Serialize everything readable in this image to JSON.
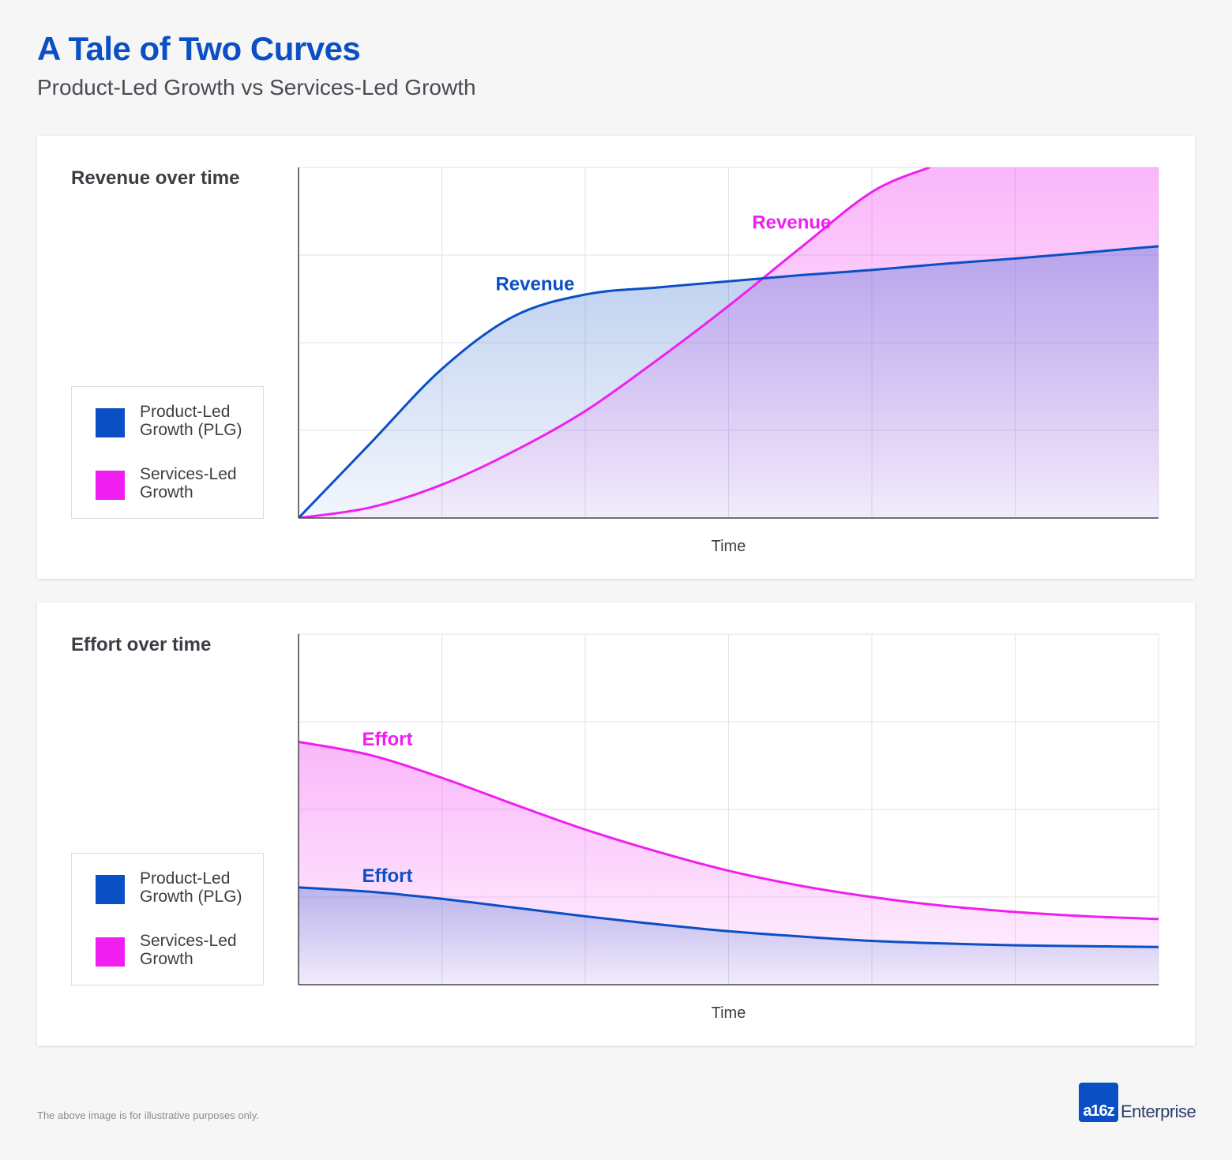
{
  "header": {
    "title": "A Tale of Two Curves",
    "subtitle": "Product-Led Growth vs Services-Led Growth"
  },
  "colors": {
    "plg": "#0b4fc4",
    "slg": "#f01ef0",
    "title": "#0b4fc4"
  },
  "legend": {
    "plg": "Product-Led Growth (PLG)",
    "slg": "Services-Led Growth"
  },
  "chart_data": [
    {
      "type": "line",
      "title": "Revenue over time",
      "xlabel": "Time",
      "ylabel": "",
      "xlim": [
        0,
        6
      ],
      "ylim": [
        0,
        4
      ],
      "grid": true,
      "legend_position": "left",
      "series": [
        {
          "name": "Product-Led Growth (PLG)",
          "label": "Revenue",
          "color": "#0b4fc4",
          "x": [
            0,
            0.5,
            1,
            1.5,
            2,
            2.5,
            3,
            3.5,
            4,
            4.5,
            5,
            5.5,
            6
          ],
          "y": [
            0,
            0.85,
            1.7,
            2.3,
            2.55,
            2.63,
            2.7,
            2.77,
            2.83,
            2.9,
            2.96,
            3.03,
            3.1
          ]
        },
        {
          "name": "Services-Led Growth",
          "label": "Revenue",
          "color": "#f01ef0",
          "x": [
            0,
            0.5,
            1,
            1.5,
            2,
            2.5,
            3,
            3.5,
            4,
            4.4
          ],
          "y": [
            0,
            0.12,
            0.38,
            0.76,
            1.22,
            1.8,
            2.42,
            3.08,
            3.72,
            4.0
          ]
        }
      ]
    },
    {
      "type": "line",
      "title": "Effort over time",
      "xlabel": "Time",
      "ylabel": "",
      "xlim": [
        0,
        6
      ],
      "ylim": [
        0,
        4
      ],
      "grid": true,
      "legend_position": "left",
      "series": [
        {
          "name": "Product-Led Growth (PLG)",
          "label": "Effort",
          "color": "#0b4fc4",
          "x": [
            0,
            0.5,
            1,
            1.5,
            2,
            2.5,
            3,
            3.5,
            4,
            4.5,
            5,
            5.5,
            6
          ],
          "y": [
            1.11,
            1.06,
            0.98,
            0.88,
            0.78,
            0.69,
            0.61,
            0.55,
            0.5,
            0.47,
            0.45,
            0.44,
            0.43
          ]
        },
        {
          "name": "Services-Led Growth",
          "label": "Effort",
          "color": "#f01ef0",
          "x": [
            0,
            0.5,
            1,
            1.5,
            2,
            2.5,
            3,
            3.5,
            4,
            4.5,
            5,
            5.5,
            6
          ],
          "y": [
            2.77,
            2.62,
            2.36,
            2.06,
            1.77,
            1.52,
            1.3,
            1.13,
            1.0,
            0.9,
            0.83,
            0.78,
            0.75
          ]
        }
      ]
    }
  ],
  "footer": {
    "note": "The above image is for illustrative purposes only.",
    "logo_mark": "a16z",
    "logo_text": "Enterprise"
  }
}
